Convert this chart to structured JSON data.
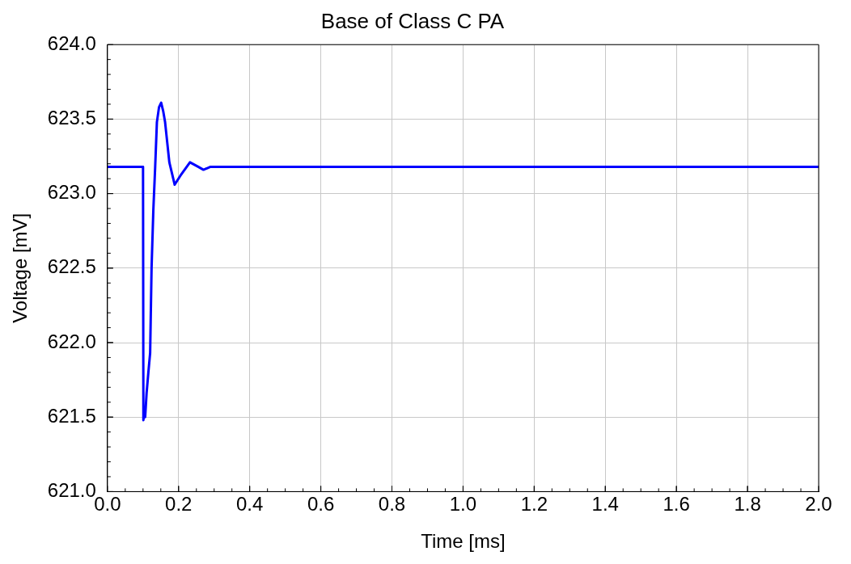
{
  "chart_data": {
    "type": "line",
    "title": "Base of Class C PA",
    "xlabel": "Time [ms]",
    "ylabel": "Voltage [mV]",
    "xlim": [
      0,
      2
    ],
    "ylim": [
      621,
      624
    ],
    "xticks": [
      {
        "value": 0,
        "label": "0.0"
      },
      {
        "value": 0.2,
        "label": "0.2"
      },
      {
        "value": 0.4,
        "label": "0.4"
      },
      {
        "value": 0.6,
        "label": "0.6"
      },
      {
        "value": 0.8,
        "label": "0.8"
      },
      {
        "value": 1,
        "label": "1.0"
      },
      {
        "value": 1.2,
        "label": "1.2"
      },
      {
        "value": 1.4,
        "label": "1.4"
      },
      {
        "value": 1.6,
        "label": "1.6"
      },
      {
        "value": 1.8,
        "label": "1.8"
      },
      {
        "value": 2,
        "label": "2.0"
      }
    ],
    "yticks": [
      {
        "value": 621,
        "label": "621.0"
      },
      {
        "value": 621.5,
        "label": "621.5"
      },
      {
        "value": 622,
        "label": "622.0"
      },
      {
        "value": 622.5,
        "label": "622.5"
      },
      {
        "value": 623,
        "label": "623.0"
      },
      {
        "value": 623.5,
        "label": "623.5"
      },
      {
        "value": 624,
        "label": "624.0"
      }
    ],
    "grid": true,
    "marker": "none",
    "line_style": "solid",
    "series": [
      {
        "color": "#0000ff",
        "x": [
          0,
          0.1,
          0.101,
          0.104,
          0.106,
          0.11,
          0.115,
          0.12,
          0.124,
          0.129,
          0.134,
          0.139,
          0.145,
          0.151,
          0.157,
          0.162,
          0.174,
          0.189,
          0.205,
          0.232,
          0.255,
          0.27,
          0.29,
          2
        ],
        "values": [
          623.18,
          623.18,
          621.48,
          621.55,
          621.5,
          621.66,
          621.8,
          621.93,
          622.5,
          622.89,
          623.17,
          623.48,
          623.58,
          623.61,
          623.55,
          623.48,
          623.21,
          623.06,
          623.12,
          623.21,
          623.18,
          623.16,
          623.18,
          623.18
        ]
      }
    ]
  }
}
